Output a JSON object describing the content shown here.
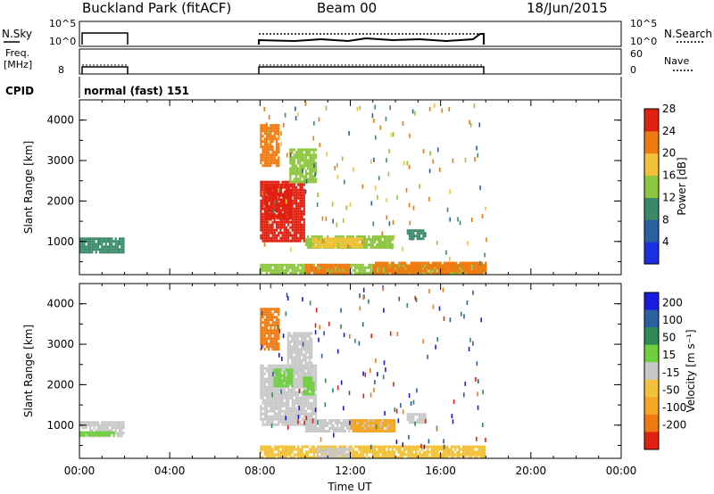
{
  "header": {
    "station": "Buckland Park (fitACF)",
    "beam": "Beam 00",
    "date": "18/Jun/2015"
  },
  "strip_panels": {
    "nsky_label": "N.Sky",
    "nsky_ticks": [
      "10^5",
      "10^0"
    ],
    "nsearch_label": "N.Search",
    "freq_label_1": "Freq.",
    "freq_label_2": "[MHz]",
    "freq_tick": "8",
    "nave_ticks": [
      "60",
      "0"
    ],
    "nave_label": "Nave",
    "cpid_label": "CPID",
    "cpid_value": "normal (fast) 151"
  },
  "colors": {
    "v_pos_200": "#1a1ae0",
    "v_pos_100": "#2b5fa0",
    "v_pos_50": "#2e8b57",
    "v_pos_15": "#6fcf3f",
    "v_ground": "#c8c8c8",
    "v_neg_15": "#f2c23a",
    "v_neg_50": "#f5a623",
    "v_neg_100": "#f07a10",
    "v_neg_200": "#e02010",
    "p_4": "#1a2fe0",
    "p_8": "#2b5fa0",
    "p_12": "#3a8a6a",
    "p_16": "#8dc63f",
    "p_20": "#f2c23a",
    "p_24": "#f07a10",
    "p_28": "#e02010"
  },
  "chart_data": [
    {
      "type": "heatmap",
      "name": "power",
      "xlabel": "Time UT",
      "ylabel": "Slant Range [km]",
      "x_ticks": [
        "00:00",
        "04:00",
        "08:00",
        "12:00",
        "16:00",
        "20:00",
        "00:00"
      ],
      "xlim_hours": [
        0,
        24
      ],
      "y_ticks": [
        1000,
        2000,
        3000,
        4000
      ],
      "ylim": [
        180,
        4500
      ],
      "colorbar_label": "Power [dB]",
      "colorbar_ticks": [
        4,
        8,
        12,
        16,
        20,
        24,
        28
      ],
      "colorbar_range": [
        0,
        30
      ],
      "regions": [
        {
          "t0": 0.0,
          "t1": 2.0,
          "r0": 750,
          "r1": 1100,
          "level": 10
        },
        {
          "t0": 8.0,
          "t1": 10.0,
          "r0": 1000,
          "r1": 2500,
          "level": 28
        },
        {
          "t0": 8.2,
          "t1": 9.4,
          "r0": 1600,
          "r1": 2400,
          "level": 29
        },
        {
          "t0": 9.3,
          "t1": 10.5,
          "r0": 2500,
          "r1": 3300,
          "level": 14
        },
        {
          "t0": 8.0,
          "t1": 8.8,
          "r0": 2900,
          "r1": 3900,
          "level": 22
        },
        {
          "t0": 10.0,
          "t1": 13.9,
          "r0": 850,
          "r1": 1150,
          "level": 12
        },
        {
          "t0": 10.3,
          "t1": 12.5,
          "r0": 900,
          "r1": 1100,
          "level": 18
        },
        {
          "t0": 14.5,
          "t1": 15.3,
          "r0": 1100,
          "r1": 1300,
          "level": 10
        },
        {
          "t0": 8.0,
          "t1": 18.0,
          "r0": 200,
          "r1": 450,
          "level": 14
        },
        {
          "t0": 10.0,
          "t1": 12.0,
          "r0": 250,
          "r1": 450,
          "level": 22
        },
        {
          "t0": 13.0,
          "t1": 18.0,
          "r0": 200,
          "r1": 500,
          "level": 20
        }
      ]
    },
    {
      "type": "heatmap",
      "name": "velocity",
      "xlabel": "Time UT",
      "ylabel": "Slant Range [km]",
      "x_ticks": [
        "00:00",
        "04:00",
        "08:00",
        "12:00",
        "16:00",
        "20:00",
        "00:00"
      ],
      "xlim_hours": [
        0,
        24
      ],
      "y_ticks": [
        1000,
        2000,
        3000,
        4000
      ],
      "ylim": [
        180,
        4500
      ],
      "colorbar_label": "Velocity [m s⁻¹]",
      "colorbar_ticks": [
        200,
        100,
        50,
        15,
        -15,
        -50,
        -100,
        -200
      ],
      "regions": [
        {
          "t0": 0.0,
          "t1": 2.0,
          "r0": 750,
          "r1": 1100,
          "level": "ground"
        },
        {
          "t0": 0.0,
          "t1": 1.5,
          "r0": 750,
          "r1": 850,
          "level": "pos15"
        },
        {
          "t0": 8.0,
          "t1": 10.5,
          "r0": 1000,
          "r1": 2500,
          "level": "ground"
        },
        {
          "t0": 9.2,
          "t1": 10.3,
          "r0": 2200,
          "r1": 3300,
          "level": "ground"
        },
        {
          "t0": 8.6,
          "t1": 9.4,
          "r0": 2000,
          "r1": 2400,
          "level": "pos15"
        },
        {
          "t0": 9.9,
          "t1": 10.4,
          "r0": 1800,
          "r1": 2200,
          "level": "pos15"
        },
        {
          "t0": 8.0,
          "t1": 8.8,
          "r0": 2900,
          "r1": 3900,
          "level": "neg100"
        },
        {
          "t0": 10.0,
          "t1": 14.0,
          "r0": 850,
          "r1": 1150,
          "level": "ground"
        },
        {
          "t0": 12.0,
          "t1": 14.0,
          "r0": 850,
          "r1": 1150,
          "level": "neg50"
        },
        {
          "t0": 14.5,
          "t1": 15.3,
          "r0": 1100,
          "r1": 1300,
          "level": "ground"
        },
        {
          "t0": 8.0,
          "t1": 18.0,
          "r0": 200,
          "r1": 500,
          "level": "neg15"
        },
        {
          "t0": 10.5,
          "t1": 12.0,
          "r0": 250,
          "r1": 450,
          "level": "ground"
        }
      ]
    }
  ]
}
